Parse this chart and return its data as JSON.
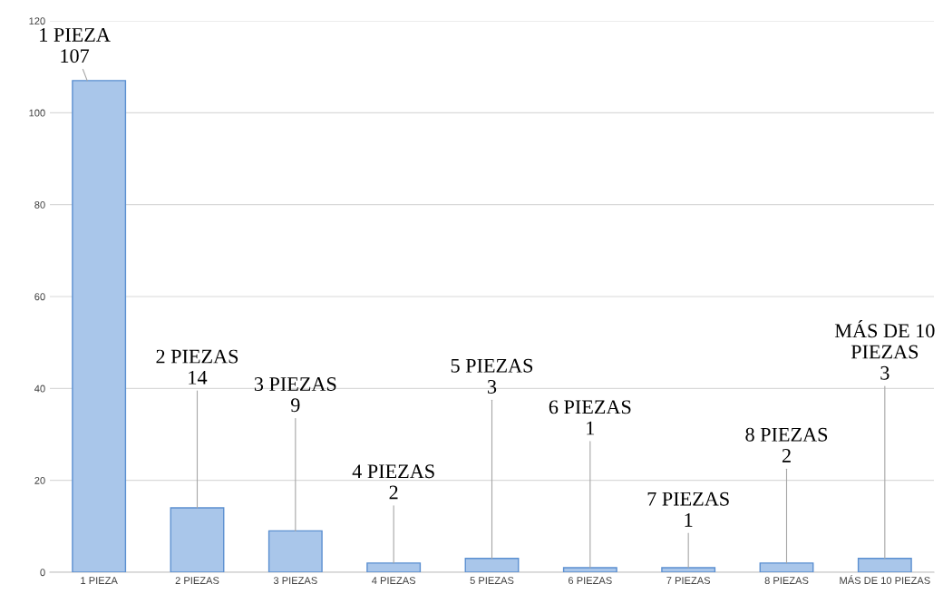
{
  "chart_data": {
    "type": "bar",
    "categories": [
      "1 PIEZA",
      "2 PIEZAS",
      "3 PIEZAS",
      "4 PIEZAS",
      "5 PIEZAS",
      "6 PIEZAS",
      "7 PIEZAS",
      "8 PIEZAS",
      "MÁS DE 10 PIEZAS"
    ],
    "values": [
      107,
      14,
      9,
      2,
      3,
      1,
      1,
      2,
      3
    ],
    "color": "#a9c6ea",
    "value_labels": [
      "1 PIEZA\n107",
      "2 PIEZAS\n14",
      "3 PIEZAS\n9",
      "4 PIEZAS\n2",
      "5 PIEZAS\n3",
      "6 PIEZAS\n1",
      "7 PIEZAS\n1",
      "8 PIEZAS\n2",
      "MÁS DE 10\nPIEZAS\n3"
    ],
    "ylim": [
      0,
      120
    ],
    "yticks": [
      0,
      20,
      40,
      60,
      80,
      100,
      120
    ],
    "grid": "y"
  }
}
